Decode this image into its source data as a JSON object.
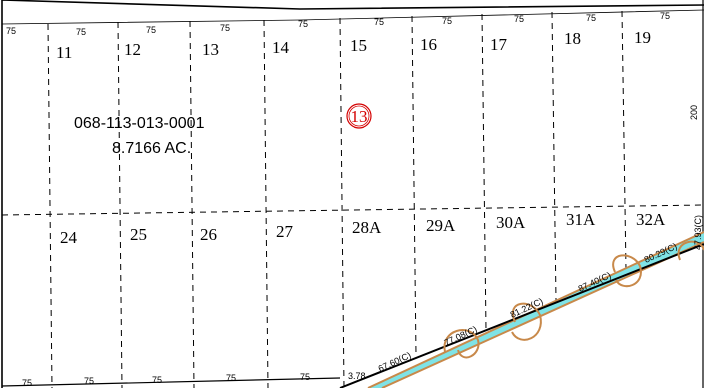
{
  "parcel": {
    "apn": "068-113-013-0001",
    "area": "8.7166 AC."
  },
  "map_number": "13",
  "top_row_lots": [
    "11",
    "12",
    "13",
    "14",
    "15",
    "16",
    "17",
    "18",
    "19"
  ],
  "bottom_row_lots": [
    "24",
    "25",
    "26",
    "27",
    "28A",
    "29A",
    "30A",
    "31A",
    "32A"
  ],
  "top_frontages": [
    "75",
    "75",
    "75",
    "75",
    "75",
    "75",
    "75",
    "75",
    "75",
    "75"
  ],
  "bottom_frontages": [
    "75",
    "75",
    "75",
    "75",
    "75",
    "3.78"
  ],
  "side_depth": "200",
  "curve_labels": [
    "67.60(C)",
    "77.08(C)",
    "81.22(C)",
    "87.40(C)",
    "80.29(C)",
    "47.93(C)"
  ],
  "colors": {
    "road_fill": "#7fe3e6",
    "road_edge": "#c8894a",
    "map_number": "#d40000",
    "lines": "#000000"
  }
}
